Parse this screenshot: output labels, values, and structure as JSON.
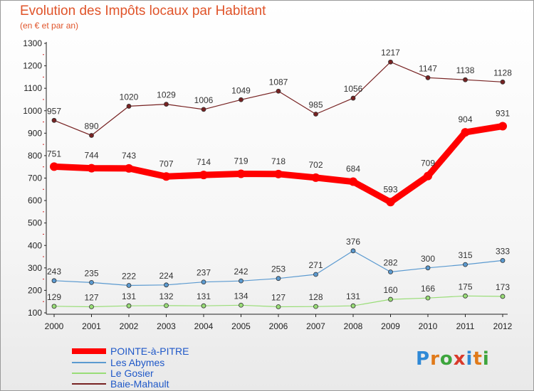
{
  "header": {
    "title": "Evolution des Impôts locaux par Habitant",
    "subtitle": "(en € et par an)"
  },
  "logo": {
    "text": "Proxiti",
    "letters": [
      "P",
      "r",
      "o",
      "x",
      "i",
      "t",
      "i"
    ],
    "colors": [
      "#2f89d6",
      "#e07a1a",
      "#3da53d",
      "#d93a2b",
      "#2f89d6",
      "#e07a1a",
      "#3da53d"
    ]
  },
  "chart_data": {
    "type": "line",
    "title": "Evolution des Impôts locaux par Habitant",
    "subtitle": "(en € et par an)",
    "xlabel": "",
    "ylabel": "",
    "x": [
      "2000",
      "2001",
      "2002",
      "2003",
      "2004",
      "2005",
      "2006",
      "2007",
      "2008",
      "2009",
      "2010",
      "2011",
      "2012"
    ],
    "ylim": [
      100,
      1300
    ],
    "yticks": [
      100,
      200,
      300,
      400,
      500,
      600,
      700,
      800,
      900,
      1000,
      1100,
      1200,
      1300
    ],
    "grid": false,
    "legend_position": "bottom-left",
    "series": [
      {
        "name": "POINTE-à-PITRE",
        "color": "#ff0000",
        "values": [
          751,
          744,
          743,
          707,
          714,
          719,
          718,
          702,
          684,
          593,
          709,
          904,
          931
        ]
      },
      {
        "name": "Les Abymes",
        "color": "#5b9ad0",
        "values": [
          243,
          235,
          222,
          224,
          237,
          242,
          253,
          271,
          376,
          282,
          300,
          315,
          333
        ]
      },
      {
        "name": "Le Gosier",
        "color": "#99dd77",
        "values": [
          129,
          127,
          131,
          132,
          131,
          134,
          127,
          128,
          131,
          160,
          166,
          175,
          173
        ]
      },
      {
        "name": "Baie-Mahault",
        "color": "#772222",
        "values": [
          957,
          890,
          1020,
          1029,
          1006,
          1049,
          1087,
          985,
          1056,
          1217,
          1147,
          1138,
          1128
        ]
      }
    ]
  }
}
